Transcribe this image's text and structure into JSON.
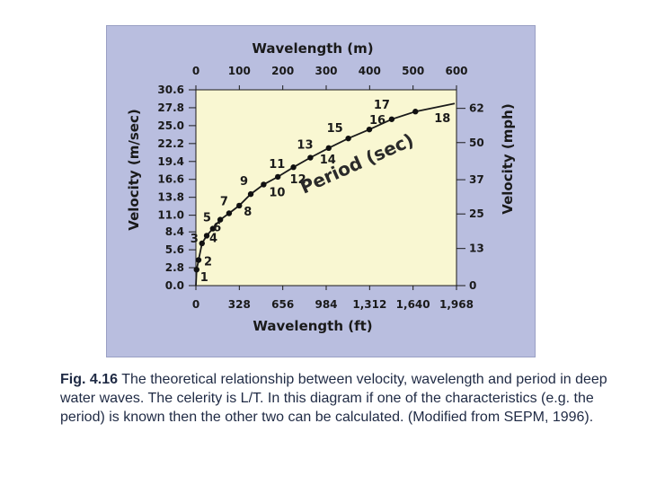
{
  "chart_data": {
    "type": "scatter",
    "title": "",
    "top_axis_label": "Wavelength (m)",
    "top_ticks": [
      "0",
      "100",
      "200",
      "300",
      "400",
      "500",
      "600"
    ],
    "top_tick_values": [
      0,
      100,
      200,
      300,
      400,
      500,
      600
    ],
    "bottom_axis_label": "Wavelength (ft)",
    "bottom_ticks": [
      "0",
      "328",
      "656",
      "984",
      "1,312",
      "1,640",
      "1,968"
    ],
    "bottom_tick_values": [
      0,
      100,
      200,
      300,
      400,
      500,
      600
    ],
    "left_axis_label": "Velocity (m/sec)",
    "left_ticks": [
      "30.6",
      "27.8",
      "25.0",
      "22.2",
      "19.4",
      "16.6",
      "13.8",
      "11.0",
      "8.4",
      "5.6",
      "2.8",
      "0.0"
    ],
    "left_tick_values": [
      30.6,
      27.8,
      25.0,
      22.2,
      19.4,
      16.6,
      13.8,
      11.0,
      8.4,
      5.6,
      2.8,
      0.0
    ],
    "right_axis_label": "Velocity (mph)",
    "right_ticks": [
      "62",
      "50",
      "37",
      "25",
      "13",
      "0"
    ],
    "right_tick_values": [
      27.7,
      22.35,
      16.55,
      11.2,
      5.8,
      0.0
    ],
    "xlim": [
      0,
      600
    ],
    "ylim": [
      0,
      30.6
    ],
    "curve_annotation": "Period (sec)",
    "series": [
      {
        "name": "Period (sec)",
        "points": [
          {
            "label": "1",
            "x": 1.6,
            "y": 2.5
          },
          {
            "label": "2",
            "x": 6.2,
            "y": 4.0
          },
          {
            "label": "3",
            "x": 14.0,
            "y": 6.6
          },
          {
            "label": "4",
            "x": 24.9,
            "y": 7.8
          },
          {
            "label": "5",
            "x": 39.0,
            "y": 8.9
          },
          {
            "label": "6",
            "x": 56.1,
            "y": 10.3
          },
          {
            "label": "7",
            "x": 76.4,
            "y": 11.3
          },
          {
            "label": "8",
            "x": 99.8,
            "y": 12.5
          },
          {
            "label": "9",
            "x": 126.3,
            "y": 14.3
          },
          {
            "label": "10",
            "x": 156.0,
            "y": 15.8
          },
          {
            "label": "11",
            "x": 188.7,
            "y": 17.0
          },
          {
            "label": "12",
            "x": 224.6,
            "y": 18.5
          },
          {
            "label": "13",
            "x": 263.6,
            "y": 20.0
          },
          {
            "label": "14",
            "x": 305.7,
            "y": 21.5
          },
          {
            "label": "15",
            "x": 350.9,
            "y": 23.0
          },
          {
            "label": "16",
            "x": 399.3,
            "y": 24.4
          },
          {
            "label": "17",
            "x": 450.8,
            "y": 26.0
          },
          {
            "label": "18",
            "x": 505.4,
            "y": 27.2
          }
        ]
      }
    ],
    "grid": false,
    "background_color": "#f9f7d2",
    "panel_color": "#b9bedf"
  },
  "caption": {
    "figure_number": "Fig. 4.16",
    "text": " The theoretical relationship between velocity, wavelength and period in deep water waves. The celerity is L/T. In this diagram if one of the characteristics (e.g. the period) is known then the other two can be calculated. (Modified from SEPM, 1996)."
  }
}
